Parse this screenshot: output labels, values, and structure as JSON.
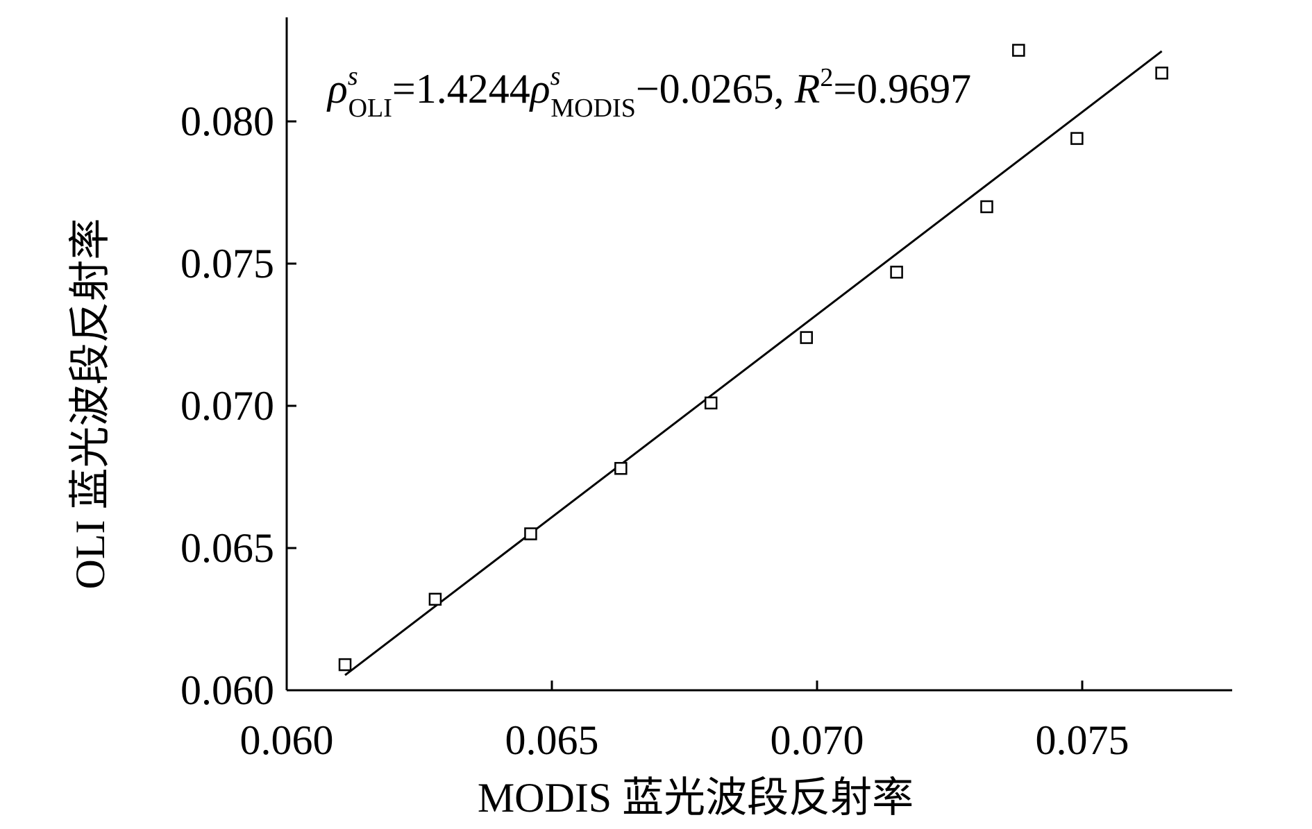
{
  "chart_data": {
    "type": "scatter",
    "xlabel": "MODIS 蓝光波段反射率",
    "ylabel": "OLI 蓝光波段反射率",
    "xlim": [
      0.06,
      0.078
    ],
    "ylim": [
      0.06,
      0.084
    ],
    "x_ticks": [
      "0.060",
      "0.065",
      "0.070",
      "0.075"
    ],
    "y_ticks": [
      "0.060",
      "0.065",
      "0.070",
      "0.075",
      "0.080"
    ],
    "x_tick_values": [
      0.06,
      0.065,
      0.07,
      0.075
    ],
    "y_tick_values": [
      0.06,
      0.065,
      0.07,
      0.075,
      0.08
    ],
    "grid": false,
    "marker": "open-square",
    "points": [
      {
        "x": 0.0611,
        "y": 0.0609
      },
      {
        "x": 0.0628,
        "y": 0.0632
      },
      {
        "x": 0.0646,
        "y": 0.0655
      },
      {
        "x": 0.0663,
        "y": 0.0678
      },
      {
        "x": 0.068,
        "y": 0.0701
      },
      {
        "x": 0.0698,
        "y": 0.0724
      },
      {
        "x": 0.0715,
        "y": 0.0747
      },
      {
        "x": 0.0732,
        "y": 0.077
      },
      {
        "x": 0.0738,
        "y": 0.0825
      },
      {
        "x": 0.0749,
        "y": 0.0794
      },
      {
        "x": 0.0765,
        "y": 0.0817
      }
    ],
    "fit_line": {
      "slope": 1.4244,
      "intercept": -0.0265,
      "x_range": [
        0.0611,
        0.0765
      ]
    },
    "annotation": {
      "rho": "ρ",
      "s": "s",
      "sub_oli": "OLI",
      "eq1": "=1.4244",
      "sub_modis": "MODIS",
      "eq2": "−0.0265, ",
      "r": "R",
      "sup2": "2",
      "eq3": "=0.9697"
    }
  }
}
